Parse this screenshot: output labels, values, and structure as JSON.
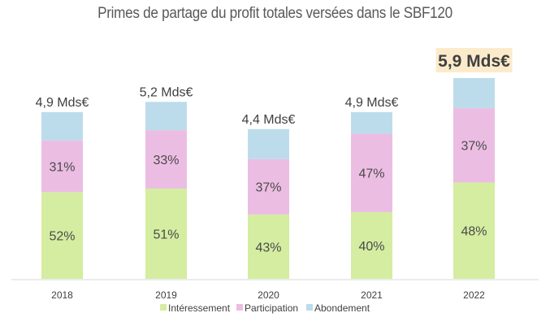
{
  "chart_data": {
    "type": "bar",
    "stacked": true,
    "title": "Primes de partage du profit totales versées dans le SBF120",
    "xlabel": "",
    "ylabel": "",
    "categories": [
      "2018",
      "2019",
      "2020",
      "2021",
      "2022"
    ],
    "totals": [
      4.9,
      5.2,
      4.4,
      4.9,
      5.9
    ],
    "total_labels": [
      "4,9 Mds€",
      "5,2 Mds€",
      "4,4 Mds€",
      "4,9 Mds€",
      "5,9 Mds€"
    ],
    "highlighted_category": "2022",
    "unit": "Mds€",
    "series": [
      {
        "name": "Intéressement",
        "color": "#d4edA1",
        "values_pct": [
          52,
          51,
          43,
          40,
          48
        ],
        "labels": [
          "52%",
          "51%",
          "43%",
          "40%",
          "48%"
        ]
      },
      {
        "name": "Participation",
        "color": "#ecbde3",
        "values_pct": [
          31,
          33,
          37,
          47,
          37
        ],
        "labels": [
          "31%",
          "33%",
          "37%",
          "47%",
          "37%"
        ]
      },
      {
        "name": "Abondement",
        "color": "#bcdcec",
        "values_pct": [
          17,
          16,
          20,
          13,
          15
        ],
        "labels": [
          "",
          "",
          "",
          "",
          ""
        ]
      }
    ],
    "ylim": [
      0,
      5.9
    ],
    "grid": false,
    "legend_position": "bottom"
  },
  "colors": {
    "highlight_bg": "#fcebcb",
    "axis": "#d9d9d9"
  }
}
